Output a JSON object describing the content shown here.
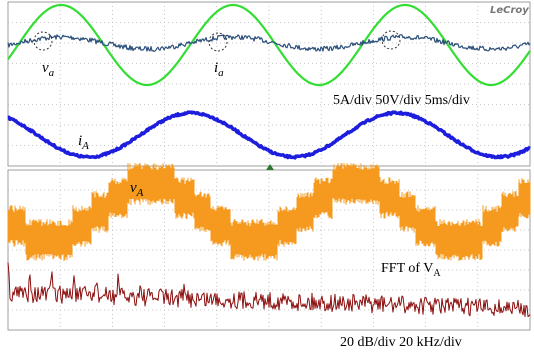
{
  "brand": "LeCroy",
  "top_panel": {
    "labels": [
      {
        "symbol": "v",
        "subscript": "a"
      },
      {
        "symbol": "i",
        "subscript": "a"
      },
      {
        "symbol": "i",
        "subscript": "A"
      }
    ],
    "scale_note": "5A/div 50V/div 5ms/div"
  },
  "bottom_panel": {
    "labels": [
      {
        "symbol": "v",
        "subscript": "A"
      }
    ],
    "fft_note": {
      "text": "FFT of V",
      "subscript": "A"
    },
    "scale_note": "20 dB/div 20 kHz/div"
  }
}
